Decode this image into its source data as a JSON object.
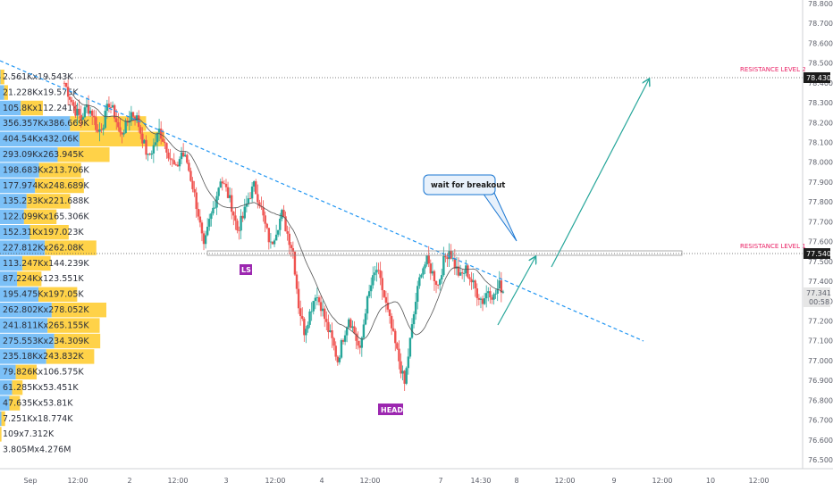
{
  "chart_data": {
    "type": "candlestick",
    "symbol_price_last": 77.341,
    "countdown": "00:58",
    "y_axis": {
      "min": 76.5,
      "max": 78.8,
      "ticks": [
        "78.800",
        "78.700",
        "78.600",
        "78.500",
        "78.400",
        "78.300",
        "78.200",
        "78.100",
        "78.000",
        "77.900",
        "77.800",
        "77.700",
        "77.600",
        "77.500",
        "77.400",
        "77.300",
        "77.200",
        "77.100",
        "77.000",
        "76.900",
        "76.800",
        "76.700",
        "76.600",
        "76.500"
      ]
    },
    "x_axis": {
      "ticks": [
        "Sep",
        "12:00",
        "2",
        "12:00",
        "3",
        "12:00",
        "4",
        "12:00",
        "7",
        "14:30",
        "8",
        "12:00",
        "9",
        "12:00",
        "10",
        "12:00"
      ]
    },
    "resistance_levels": [
      {
        "label": "RESISTANCE LEVEL 2",
        "value": 78.43,
        "price_tag": "78.430"
      },
      {
        "label": "RESISTANCE LEVEL 1",
        "value": 77.54,
        "price_tag": "77.540"
      }
    ],
    "annotations": {
      "callout": "wait for breakout",
      "left_shoulder": "LS",
      "head": "HEAD"
    },
    "volume_profile": [
      "2.561Kx19.543K",
      "21.228Kx19.575K",
      "105.8Kx112.241K",
      "356.357Kx386.669K",
      "404.54Kx432.06K",
      "293.09Kx263.945K",
      "198.683Kx213.706K",
      "177.974Kx248.689K",
      "135.233Kx221.688K",
      "122.099Kx165.306K",
      "152.31Kx197.023K",
      "227.812Kx262.08K",
      "113.247Kx144.239K",
      "87.224Kx123.551K",
      "195.475Kx197.05K",
      "262.802Kx278.052K",
      "241.811Kx265.155K",
      "275.553Kx234.309K",
      "235.18Kx243.832K",
      "79.826Kx106.575K",
      "61.285Kx53.451K",
      "47.635Kx53.81K",
      "7.251Kx18.774K",
      "109x7.312K",
      "3.805Mx4.276M"
    ],
    "price_path": [
      78.4,
      78.33,
      78.26,
      78.22,
      78.28,
      78.25,
      78.15,
      78.2,
      78.3,
      78.24,
      78.14,
      78.18,
      78.25,
      78.22,
      78.12,
      78.02,
      78.08,
      78.16,
      78.1,
      78.02,
      77.96,
      78.05,
      78.0,
      77.88,
      77.74,
      77.56,
      77.7,
      77.8,
      77.92,
      77.86,
      77.78,
      77.66,
      77.72,
      77.82,
      77.88,
      77.8,
      77.68,
      77.58,
      77.66,
      77.74,
      77.64,
      77.55,
      77.28,
      77.15,
      77.24,
      77.34,
      77.28,
      77.18,
      77.1,
      77.0,
      77.12,
      77.22,
      77.14,
      77.04,
      77.26,
      77.38,
      77.46,
      77.36,
      77.24,
      77.12,
      77.0,
      76.88,
      77.1,
      77.3,
      77.46,
      77.5,
      77.44,
      77.38,
      77.5,
      77.56,
      77.48,
      77.42,
      77.46,
      77.4,
      77.34,
      77.3,
      77.36,
      77.32,
      77.38,
      77.34
    ],
    "colors": {
      "up": "#26a69a",
      "down": "#ef5350",
      "trendline": "#2196f3",
      "arrow": "#26a69a",
      "ma": "#555555",
      "resistance_text": "#e91e63",
      "tag_bg": "#9c27b0",
      "vp_blue": "#64b5f6",
      "vp_yellow": "#ffca28"
    }
  }
}
